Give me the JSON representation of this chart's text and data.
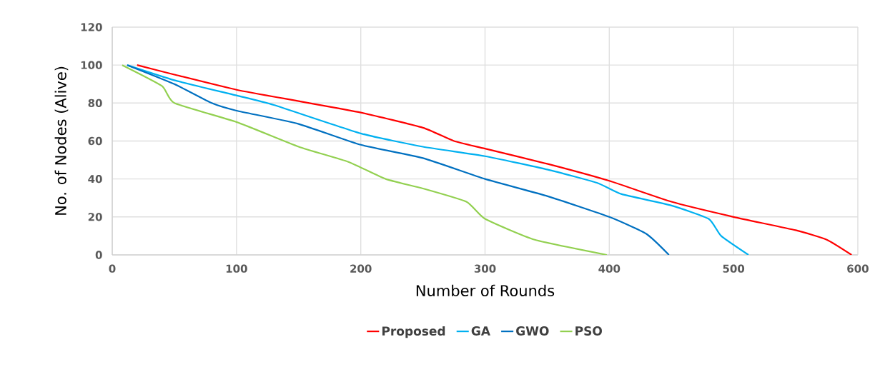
{
  "chart_data": {
    "type": "line",
    "xlabel": "Number of Rounds",
    "ylabel": "No. of Nodes (Alive)",
    "xlim": [
      0,
      600
    ],
    "ylim": [
      0,
      120
    ],
    "xticks": [
      0,
      100,
      200,
      300,
      400,
      500,
      600
    ],
    "yticks": [
      0,
      20,
      40,
      60,
      80,
      100,
      120
    ],
    "grid": true,
    "legend": "bottom",
    "marker": "none",
    "line_style": "solid",
    "series": [
      {
        "name": "Proposed",
        "color": "#ff0000",
        "x": [
          20,
          50,
          100,
          150,
          200,
          250,
          275,
          300,
          350,
          400,
          450,
          500,
          550,
          575,
          595
        ],
        "values": [
          100,
          95,
          87,
          81,
          75,
          67,
          60,
          56,
          48,
          39,
          28,
          20,
          13,
          8,
          0
        ]
      },
      {
        "name": "GA",
        "color": "#00b0f0",
        "x": [
          12,
          50,
          100,
          130,
          200,
          250,
          300,
          350,
          390,
          410,
          450,
          480,
          490,
          512
        ],
        "values": [
          100,
          92,
          84,
          79,
          64,
          57,
          52,
          45,
          38,
          32,
          26,
          19,
          10,
          0
        ]
      },
      {
        "name": "GWO",
        "color": "#0070c0",
        "x": [
          12,
          50,
          80,
          100,
          150,
          200,
          250,
          300,
          350,
          400,
          430,
          448
        ],
        "values": [
          100,
          90,
          80,
          76,
          69,
          58,
          51,
          40,
          31,
          20,
          11,
          0
        ]
      },
      {
        "name": "PSO",
        "color": "#92d050",
        "x": [
          8,
          40,
          50,
          100,
          150,
          190,
          220,
          250,
          285,
          300,
          340,
          398
        ],
        "values": [
          100,
          89,
          80,
          70,
          57,
          49,
          40,
          35,
          28,
          19,
          8,
          0
        ]
      }
    ]
  }
}
